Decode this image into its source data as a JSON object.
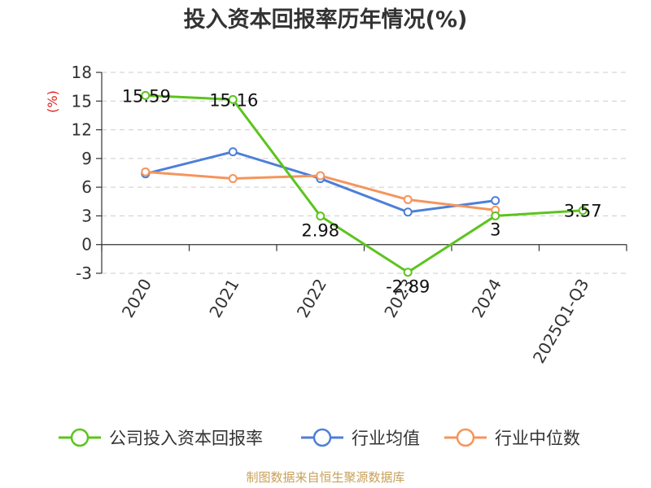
{
  "chart_data": {
    "type": "line",
    "title": "投入资本回报率历年情况(%)",
    "ylabel": "(%)",
    "xlabel": "",
    "categories": [
      "2020",
      "2021",
      "2022",
      "2023",
      "2024",
      "2025Q1-Q3"
    ],
    "ylim": [
      -3,
      18
    ],
    "yticks": [
      -3,
      0,
      3,
      6,
      9,
      12,
      15,
      18
    ],
    "grid": true,
    "legend_position": "bottom",
    "series": [
      {
        "name": "公司投入资本回报率",
        "color": "#5cc41e",
        "values": [
          15.59,
          15.16,
          2.98,
          -2.89,
          3,
          3.57
        ],
        "labels": [
          "15.59",
          "15.16",
          "2.98",
          "-2.89",
          "3",
          "3.57"
        ]
      },
      {
        "name": "行业均值",
        "color": "#4d7fd9",
        "values": [
          7.4,
          9.7,
          6.9,
          3.4,
          4.6,
          null
        ]
      },
      {
        "name": "行业中位数",
        "color": "#f5955c",
        "values": [
          7.6,
          6.9,
          7.2,
          4.7,
          3.6,
          null
        ]
      }
    ]
  },
  "source": "制图数据来自恒生聚源数据库"
}
